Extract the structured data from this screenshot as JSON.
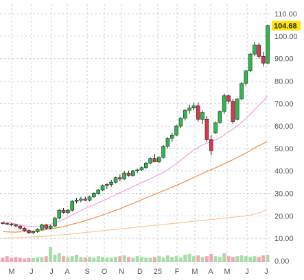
{
  "chart_data": {
    "type": "candlestick",
    "title": "",
    "last_price_label": "104.68",
    "ylim": [
      0,
      110
    ],
    "y_ticks": [
      "110.00",
      "100.00",
      "90.00",
      "80.00",
      "70.00",
      "60.00",
      "50.00",
      "40.00",
      "30.00",
      "20.00",
      "10.00",
      "0.00"
    ],
    "x_ticks": [
      "M",
      "J",
      "J",
      "A",
      "S",
      "O",
      "N",
      "D",
      "25",
      "F",
      "M",
      "A",
      "M",
      "J",
      "J"
    ],
    "grid": true,
    "colors": {
      "up": "#2db84d",
      "down": "#d9364f",
      "ma_short": "#f0a0d8",
      "ma_mid": "#f08a4a",
      "ma_long": "#f6c890",
      "volume_up": "#a8dca8",
      "volume_down": "#f2a8b4",
      "last_price_bg": "#ffe600"
    },
    "weeks": [
      [
        17.0,
        17.2,
        16.2,
        16.6
      ],
      [
        16.6,
        17.0,
        16.0,
        16.4
      ],
      [
        16.4,
        16.8,
        15.5,
        16.0
      ],
      [
        16.0,
        16.5,
        15.0,
        15.5
      ],
      [
        15.5,
        15.8,
        14.0,
        14.5
      ],
      [
        14.5,
        15.0,
        13.0,
        13.5
      ],
      [
        13.5,
        14.0,
        12.0,
        12.5
      ],
      [
        12.5,
        13.5,
        12.0,
        13.0
      ],
      [
        13.0,
        14.5,
        12.5,
        14.0
      ],
      [
        14.0,
        16.5,
        13.5,
        16.0
      ],
      [
        16.0,
        16.5,
        14.0,
        14.5
      ],
      [
        14.5,
        16.0,
        14.0,
        15.5
      ],
      [
        15.5,
        19.5,
        15.0,
        19.0
      ],
      [
        19.0,
        23.0,
        18.5,
        22.5
      ],
      [
        22.5,
        23.5,
        21.0,
        21.5
      ],
      [
        21.5,
        23.0,
        21.0,
        22.5
      ],
      [
        22.5,
        27.0,
        22.0,
        26.5
      ],
      [
        26.5,
        28.0,
        25.5,
        27.0
      ],
      [
        27.0,
        28.5,
        26.0,
        27.5
      ],
      [
        27.5,
        28.5,
        26.5,
        27.0
      ],
      [
        27.0,
        29.0,
        26.5,
        28.5
      ],
      [
        28.5,
        30.5,
        28.0,
        30.0
      ],
      [
        30.0,
        32.0,
        29.5,
        31.5
      ],
      [
        31.5,
        34.0,
        31.0,
        33.5
      ],
      [
        33.5,
        34.5,
        32.0,
        34.0
      ],
      [
        34.0,
        36.0,
        33.0,
        35.0
      ],
      [
        35.0,
        37.5,
        34.5,
        37.0
      ],
      [
        37.0,
        38.5,
        35.5,
        36.5
      ],
      [
        36.5,
        40.0,
        36.0,
        39.0
      ],
      [
        39.0,
        40.0,
        37.5,
        38.0
      ],
      [
        38.0,
        40.5,
        37.5,
        40.0
      ],
      [
        40.0,
        41.0,
        39.0,
        40.5
      ],
      [
        40.5,
        42.0,
        40.0,
        41.5
      ],
      [
        41.5,
        44.0,
        41.0,
        43.5
      ],
      [
        43.5,
        46.0,
        43.0,
        45.5
      ],
      [
        45.5,
        47.5,
        44.5,
        44.0
      ],
      [
        44.0,
        46.5,
        43.5,
        46.0
      ],
      [
        46.0,
        51.5,
        45.5,
        51.0
      ],
      [
        51.0,
        55.0,
        50.0,
        54.5
      ],
      [
        54.5,
        57.0,
        53.0,
        56.0
      ],
      [
        56.0,
        60.5,
        55.5,
        60.0
      ],
      [
        60.0,
        64.0,
        59.0,
        63.5
      ],
      [
        63.5,
        67.5,
        62.5,
        67.0
      ],
      [
        67.0,
        69.5,
        65.5,
        68.0
      ],
      [
        68.0,
        70.5,
        67.0,
        69.0
      ],
      [
        69.0,
        70.5,
        62.0,
        63.0
      ],
      [
        63.0,
        67.0,
        61.0,
        66.0
      ],
      [
        63.0,
        64.5,
        53.0,
        54.0
      ],
      [
        54.0,
        56.0,
        47.0,
        49.0
      ],
      [
        57.0,
        62.0,
        56.5,
        61.5
      ],
      [
        61.5,
        67.0,
        61.0,
        66.5
      ],
      [
        66.5,
        74.5,
        65.5,
        73.5
      ],
      [
        73.5,
        74.0,
        70.0,
        71.0
      ],
      [
        71.0,
        72.0,
        61.0,
        62.0
      ],
      [
        63.0,
        72.5,
        62.5,
        72.0
      ],
      [
        72.0,
        79.5,
        71.5,
        79.0
      ],
      [
        79.0,
        85.0,
        78.0,
        84.5
      ],
      [
        84.5,
        92.5,
        84.0,
        92.0
      ],
      [
        92.0,
        97.5,
        91.0,
        96.0
      ],
      [
        96.0,
        97.0,
        90.0,
        91.0
      ],
      [
        91.0,
        93.0,
        86.5,
        88.0
      ],
      [
        88.0,
        105.0,
        87.5,
        104.68
      ]
    ],
    "ma_short": [
      17.5,
      17.2,
      16.8,
      16.4,
      16.0,
      15.6,
      15.3,
      15.2,
      15.3,
      15.5,
      15.8,
      16.2,
      16.8,
      17.6,
      18.5,
      19.4,
      20.4,
      21.4,
      22.4,
      23.3,
      24.2,
      25.0,
      25.8,
      26.7,
      27.6,
      28.5,
      29.4,
      30.3,
      31.2,
      32.1,
      33.0,
      33.9,
      34.8,
      35.7,
      36.6,
      37.5,
      38.4,
      39.4,
      40.6,
      41.9,
      43.3,
      44.8,
      46.3,
      47.8,
      49.3,
      50.5,
      51.6,
      52.4,
      53.0,
      53.8,
      54.8,
      56.0,
      57.4,
      58.6,
      60.0,
      61.6,
      63.3,
      65.2,
      67.3,
      69.2,
      71.0,
      73.5
    ],
    "ma_mid": [
      13.0,
      12.9,
      12.8,
      12.8,
      12.9,
      13.0,
      13.1,
      13.2,
      13.4,
      13.6,
      13.9,
      14.2,
      14.5,
      14.9,
      15.3,
      15.8,
      16.3,
      16.8,
      17.3,
      17.9,
      18.5,
      19.1,
      19.7,
      20.4,
      21.1,
      21.8,
      22.5,
      23.2,
      24.0,
      24.8,
      25.6,
      26.4,
      27.2,
      28.0,
      28.8,
      29.6,
      30.4,
      31.2,
      32.0,
      32.8,
      33.6,
      34.4,
      35.3,
      36.2,
      37.1,
      38.0,
      38.9,
      39.8,
      40.6,
      41.4,
      42.3,
      43.2,
      44.1,
      45.0,
      46.0,
      47.0,
      48.0,
      49.1,
      50.2,
      51.3,
      52.2,
      53.0
    ],
    "ma_long": [
      10.0,
      10.1,
      10.2,
      10.3,
      10.4,
      10.5,
      10.6,
      10.7,
      10.8,
      10.9,
      11.0,
      11.1,
      11.2,
      11.4,
      11.6,
      11.8,
      12.0,
      12.2,
      12.4,
      12.6,
      12.8,
      13.0,
      13.2,
      13.4,
      13.6,
      13.8,
      14.0,
      14.2,
      14.4,
      14.6,
      14.8,
      15.0,
      15.2,
      15.4,
      15.6,
      15.8,
      16.0,
      16.2,
      16.4,
      16.6,
      16.8,
      17.0,
      17.2,
      17.4,
      17.6,
      17.8,
      18.0,
      18.2,
      18.4,
      18.6,
      18.8,
      19.0,
      19.2,
      19.4,
      19.6,
      19.8,
      20.0,
      20.4,
      20.8,
      21.4,
      22.1,
      23.0
    ],
    "volume": [
      0.3,
      0.4,
      0.3,
      0.35,
      0.3,
      0.25,
      0.3,
      0.28,
      0.32,
      0.35,
      0.4,
      1.0,
      0.5,
      0.6,
      0.4,
      0.35,
      0.4,
      0.5,
      0.35,
      0.3,
      0.35,
      0.3,
      0.4,
      0.35,
      0.3,
      0.3,
      0.35,
      0.4,
      0.45,
      0.35,
      0.3,
      0.4,
      0.35,
      0.3,
      0.3,
      0.35,
      0.4,
      0.3,
      0.45,
      0.35,
      0.4,
      0.3,
      0.5,
      0.55,
      0.4,
      0.45,
      0.35,
      0.4,
      0.55,
      0.4,
      0.35,
      0.6,
      0.4,
      0.35,
      0.4,
      0.45,
      0.4,
      0.35,
      0.4,
      0.35,
      0.45,
      0.5
    ]
  }
}
